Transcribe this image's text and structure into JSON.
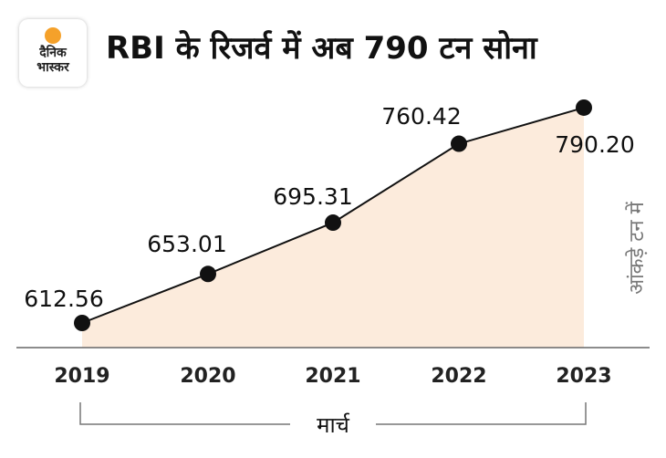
{
  "logo": {
    "line1": "दैनिक",
    "line2": "भास्कर",
    "accent": "#f5a12a"
  },
  "title": "RBI के रिजर्व में अब 790 टन सोना",
  "chart_data": {
    "type": "area",
    "title": "RBI के रिजर्व में अब 790 टन सोना",
    "categories": [
      "2019",
      "2020",
      "2021",
      "2022",
      "2023"
    ],
    "values": [
      612.56,
      653.01,
      695.31,
      760.42,
      790.2
    ],
    "labels": [
      "612.56",
      "653.01",
      "695.31",
      "760.42",
      "790.20"
    ],
    "xlabel": "मार्च",
    "ylabel": "आंकड़े टन में",
    "fill_color": "#fcebdc",
    "line_color": "#111111",
    "grid": false
  }
}
